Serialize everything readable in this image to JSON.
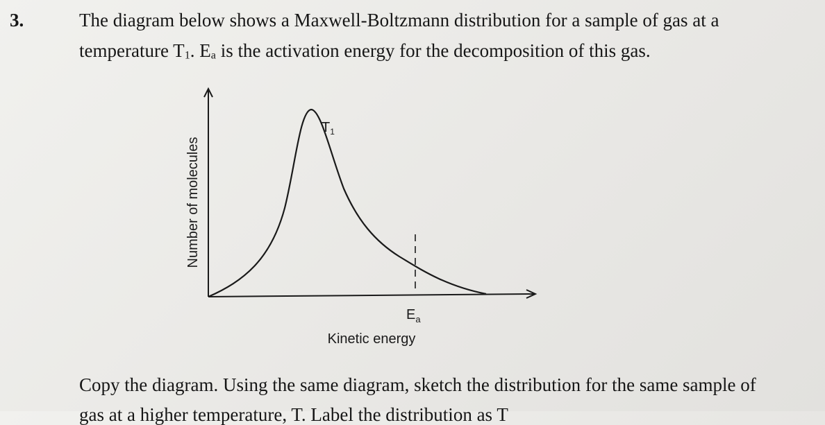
{
  "question": {
    "number": "3.",
    "line1": "The diagram below shows a Maxwell-Boltzmann distribution for a sample of gas at a",
    "line2": {
      "part1": "temperature T",
      "sub1": "1",
      "part2": ".  E",
      "sub2": "a",
      "part3": " is the activation energy for the decomposition of this gas."
    }
  },
  "diagram": {
    "y_axis_label": "Number of molecules",
    "x_axis_label": "Kinetic energy",
    "curve_label": {
      "main": "T",
      "sub": "1"
    },
    "ea_label": {
      "main": "E",
      "sub": "a"
    }
  },
  "instruction": {
    "line1": "Copy the diagram. Using the same diagram, sketch the distribution for the same sample of",
    "line2_partial": "gas at a higher temperature, T. Label the distribution as T"
  }
}
